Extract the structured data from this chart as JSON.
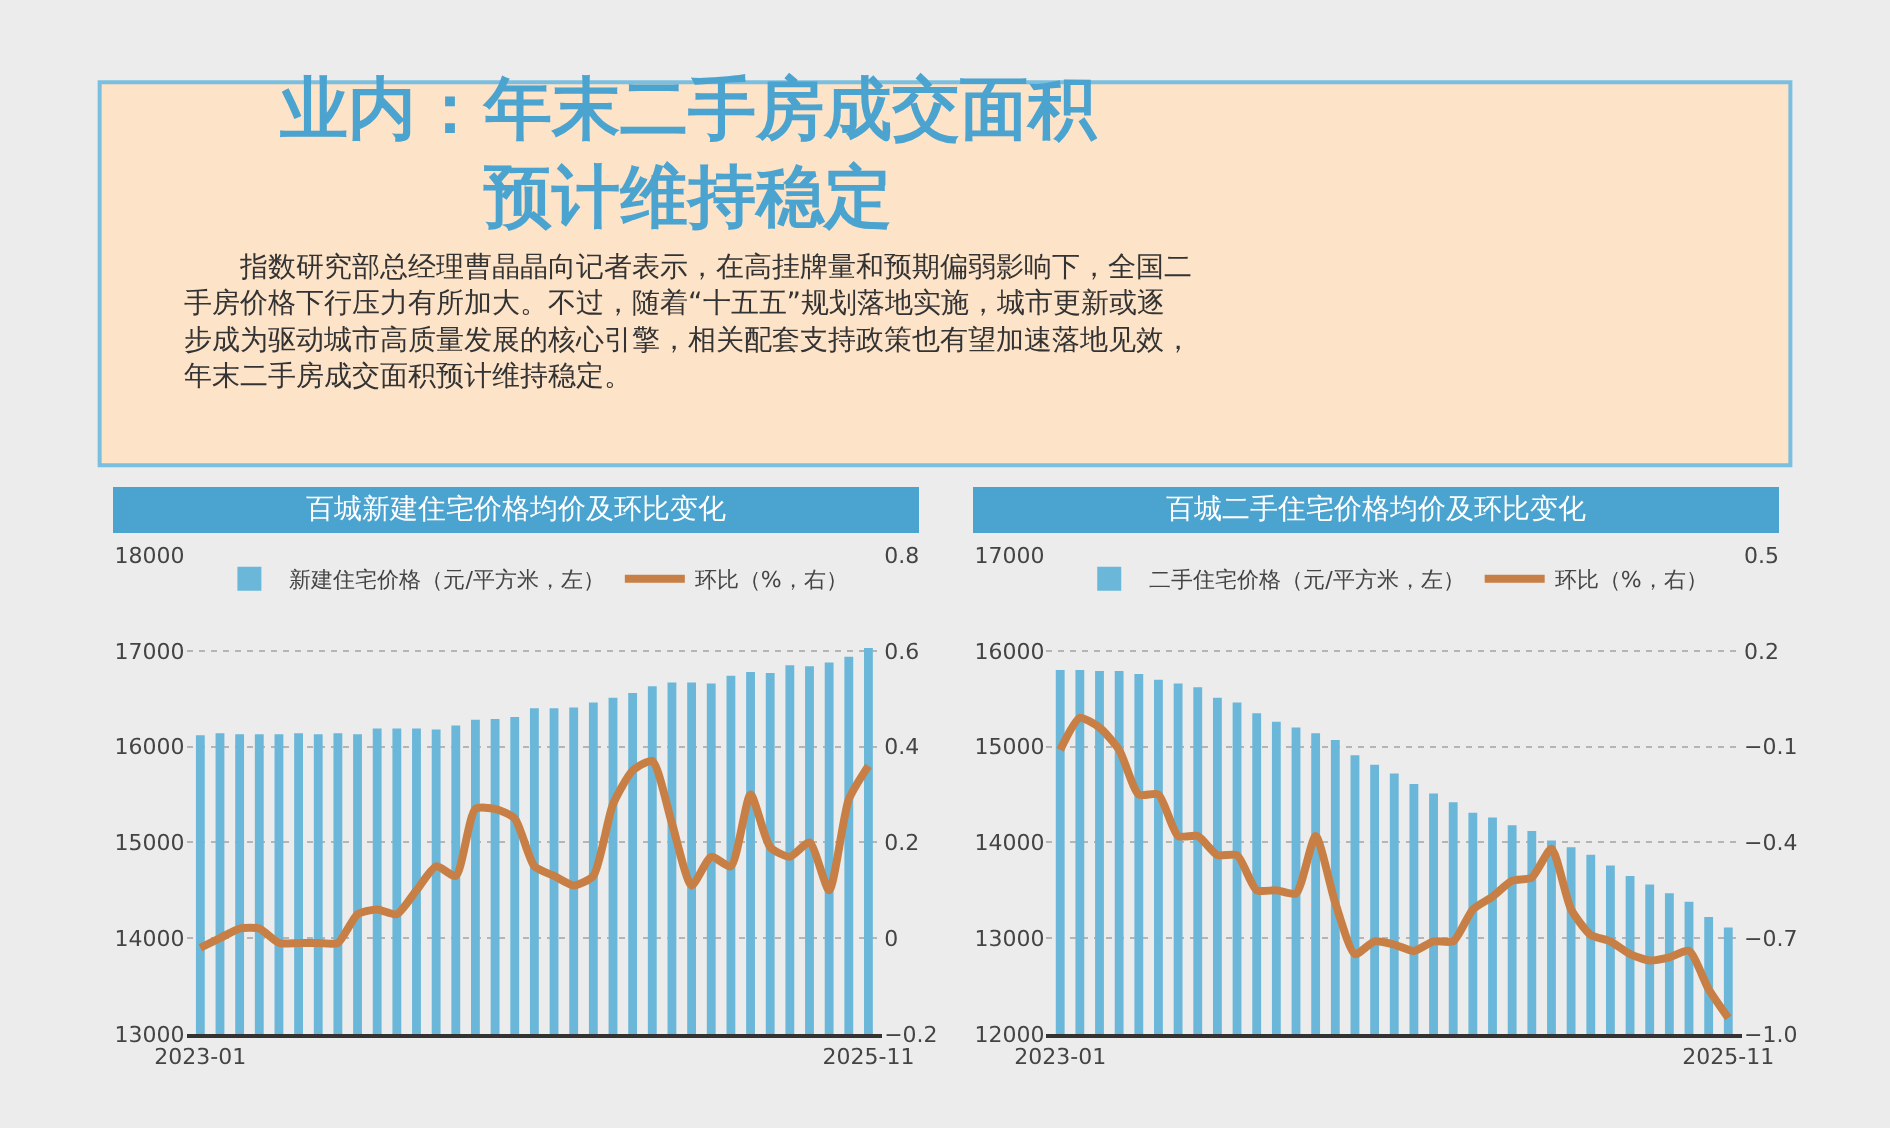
{
  "chart_data": [
    {
      "type": "other",
      "title": "业内：年末二手房成交面积预计维持稳定",
      "annotations": [
        "指数研究部总经理曹晶晶向记者表示，在高挂牌量和预期偏弱影响下，全国二手房价格下行压力有所加大。不过，随着“十五五”规划落地实施，城市更新或逐步成为驱动城市高质量发展的核心引擎，相关配套支持政策也有望加速落地见效，年末二手房成交面积预计维持稳定。"
      ]
    },
    {
      "type": "bar",
      "title": "百城新建住宅价格均价及环比变化",
      "categories": [
        "2023-01",
        null,
        null,
        null,
        null,
        null,
        null,
        null,
        null,
        null,
        null,
        null,
        null,
        null,
        null,
        null,
        null,
        null,
        null,
        null,
        null,
        null,
        null,
        null,
        null,
        null,
        null,
        null,
        null,
        null,
        null,
        null,
        null,
        null,
        "2025-11"
      ],
      "series": [
        {
          "type": "bar",
          "name": "新建住宅价格（元/平方米，左）",
          "color": "#6bb7d9",
          "values": [
            16120,
            16140,
            16130,
            16130,
            16130,
            16140,
            16130,
            16140,
            16130,
            16190,
            16190,
            16190,
            16180,
            16220,
            16280,
            16290,
            16310,
            16400,
            16400,
            16410,
            16460,
            16510,
            16560,
            16630,
            16670,
            16670,
            16660,
            16740,
            16780,
            16770,
            16850,
            16840,
            16880,
            16940,
            17030
          ]
        },
        {
          "type": "line",
          "axis": "y2",
          "name": "环比（%，右）",
          "color": "#c87f45",
          "values": [
            -0.02,
            0.0,
            0.02,
            0.02,
            -0.01,
            -0.01,
            -0.01,
            -0.01,
            0.05,
            0.06,
            0.05,
            0.1,
            0.15,
            0.13,
            0.27,
            0.27,
            0.25,
            0.15,
            0.13,
            0.11,
            0.13,
            0.28,
            0.35,
            0.37,
            0.24,
            0.11,
            0.17,
            0.15,
            0.3,
            0.19,
            0.17,
            0.2,
            0.1,
            0.29,
            0.36
          ]
        }
      ],
      "ylim": [
        13000,
        18000
      ],
      "yticks": [
        13000,
        14000,
        15000,
        16000,
        17000,
        18000
      ],
      "y2lim": [
        -0.2,
        0.8
      ],
      "y2ticks": [
        {
          "value": -0.2,
          "label": "−0.2"
        },
        0,
        0.2,
        0.4,
        0.6,
        0.8
      ],
      "grid": "y",
      "legend": "top",
      "marker": "none",
      "line_style": "solid"
    },
    {
      "type": "bar",
      "title": "百城二手住宅价格均价及环比变化",
      "categories": [
        "2023-01",
        null,
        null,
        null,
        null,
        null,
        null,
        null,
        null,
        null,
        null,
        null,
        null,
        null,
        null,
        null,
        null,
        null,
        null,
        null,
        null,
        null,
        null,
        null,
        null,
        null,
        null,
        null,
        null,
        null,
        null,
        null,
        null,
        null,
        "2025-11"
      ],
      "series": [
        {
          "type": "bar",
          "name": "二手住宅价格（元/平方米，左）",
          "color": "#6bb7d9",
          "values": [
            15800,
            15800,
            15790,
            15790,
            15760,
            15700,
            15660,
            15620,
            15510,
            15460,
            15350,
            15260,
            15200,
            15140,
            15070,
            14910,
            14810,
            14720,
            14610,
            14510,
            14420,
            14310,
            14260,
            14180,
            14120,
            14020,
            13950,
            13870,
            13760,
            13650,
            13560,
            13470,
            13380,
            13220,
            13110
          ]
        },
        {
          "type": "line",
          "axis": "y2",
          "name": "环比（%，右）",
          "color": "#c87f45",
          "values": [
            -0.11,
            -0.01,
            -0.04,
            -0.11,
            -0.25,
            -0.25,
            -0.38,
            -0.38,
            -0.44,
            -0.44,
            -0.55,
            -0.55,
            -0.56,
            -0.38,
            -0.59,
            -0.75,
            -0.71,
            -0.72,
            -0.74,
            -0.71,
            -0.71,
            -0.61,
            -0.57,
            -0.52,
            -0.51,
            -0.42,
            -0.61,
            -0.69,
            -0.71,
            -0.75,
            -0.77,
            -0.76,
            -0.74,
            -0.86,
            -0.95
          ]
        }
      ],
      "ylim": [
        12000,
        17000
      ],
      "yticks": [
        12000,
        13000,
        14000,
        15000,
        16000,
        17000
      ],
      "y2lim": [
        -1.0,
        0.5
      ],
      "y2ticks": [
        {
          "value": -1.0,
          "label": "−1.0"
        },
        {
          "value": -0.7,
          "label": "−0.7"
        },
        {
          "value": -0.4,
          "label": "−0.4"
        },
        {
          "value": -0.1,
          "label": "−0.1"
        },
        0.2,
        0.5
      ],
      "grid": "y",
      "legend": "top",
      "marker": "none",
      "line_style": "solid"
    }
  ]
}
